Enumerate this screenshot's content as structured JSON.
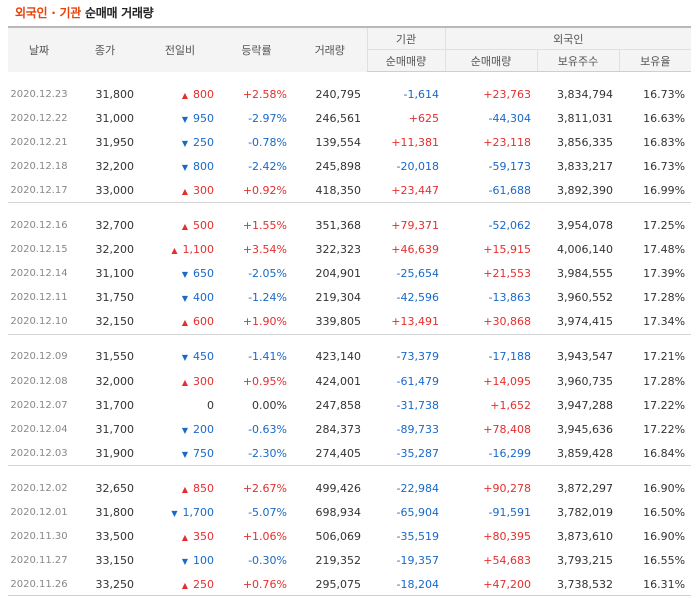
{
  "title": {
    "part1": "외국인",
    "sep": "·",
    "part2": "기관",
    "rest": "순매매 거래량"
  },
  "columns": {
    "date": "날짜",
    "close": "종가",
    "change": "전일비",
    "rate": "등락률",
    "volume": "거래량",
    "inst_group": "기관",
    "inst_net": "순매매량",
    "foreign_group": "외국인",
    "foreign_net": "순매매량",
    "foreign_hold": "보유주수",
    "foreign_ratio": "보유율"
  },
  "colors": {
    "up": "#e52e2e",
    "down": "#1969c8"
  },
  "groups": [
    [
      {
        "date": "2020.12.23",
        "close": "31,800",
        "dir": "up",
        "change": "800",
        "rate": "+2.58%",
        "volume": "240,795",
        "inst": "-1,614",
        "foreign": "+23,763",
        "hold": "3,834,794",
        "ratio": "16.73%"
      },
      {
        "date": "2020.12.22",
        "close": "31,000",
        "dir": "down",
        "change": "950",
        "rate": "-2.97%",
        "volume": "246,561",
        "inst": "+625",
        "foreign": "-44,304",
        "hold": "3,811,031",
        "ratio": "16.63%"
      },
      {
        "date": "2020.12.21",
        "close": "31,950",
        "dir": "down",
        "change": "250",
        "rate": "-0.78%",
        "volume": "139,554",
        "inst": "+11,381",
        "foreign": "+23,118",
        "hold": "3,856,335",
        "ratio": "16.83%"
      },
      {
        "date": "2020.12.18",
        "close": "32,200",
        "dir": "down",
        "change": "800",
        "rate": "-2.42%",
        "volume": "245,898",
        "inst": "-20,018",
        "foreign": "-59,173",
        "hold": "3,833,217",
        "ratio": "16.73%"
      },
      {
        "date": "2020.12.17",
        "close": "33,000",
        "dir": "up",
        "change": "300",
        "rate": "+0.92%",
        "volume": "418,350",
        "inst": "+23,447",
        "foreign": "-61,688",
        "hold": "3,892,390",
        "ratio": "16.99%"
      }
    ],
    [
      {
        "date": "2020.12.16",
        "close": "32,700",
        "dir": "up",
        "change": "500",
        "rate": "+1.55%",
        "volume": "351,368",
        "inst": "+79,371",
        "foreign": "-52,062",
        "hold": "3,954,078",
        "ratio": "17.25%"
      },
      {
        "date": "2020.12.15",
        "close": "32,200",
        "dir": "up",
        "change": "1,100",
        "rate": "+3.54%",
        "volume": "322,323",
        "inst": "+46,639",
        "foreign": "+15,915",
        "hold": "4,006,140",
        "ratio": "17.48%"
      },
      {
        "date": "2020.12.14",
        "close": "31,100",
        "dir": "down",
        "change": "650",
        "rate": "-2.05%",
        "volume": "204,901",
        "inst": "-25,654",
        "foreign": "+21,553",
        "hold": "3,984,555",
        "ratio": "17.39%"
      },
      {
        "date": "2020.12.11",
        "close": "31,750",
        "dir": "down",
        "change": "400",
        "rate": "-1.24%",
        "volume": "219,304",
        "inst": "-42,596",
        "foreign": "-13,863",
        "hold": "3,960,552",
        "ratio": "17.28%"
      },
      {
        "date": "2020.12.10",
        "close": "32,150",
        "dir": "up",
        "change": "600",
        "rate": "+1.90%",
        "volume": "339,805",
        "inst": "+13,491",
        "foreign": "+30,868",
        "hold": "3,974,415",
        "ratio": "17.34%"
      }
    ],
    [
      {
        "date": "2020.12.09",
        "close": "31,550",
        "dir": "down",
        "change": "450",
        "rate": "-1.41%",
        "volume": "423,140",
        "inst": "-73,379",
        "foreign": "-17,188",
        "hold": "3,943,547",
        "ratio": "17.21%"
      },
      {
        "date": "2020.12.08",
        "close": "32,000",
        "dir": "up",
        "change": "300",
        "rate": "+0.95%",
        "volume": "424,001",
        "inst": "-61,479",
        "foreign": "+14,095",
        "hold": "3,960,735",
        "ratio": "17.28%"
      },
      {
        "date": "2020.12.07",
        "close": "31,700",
        "dir": "none",
        "change": "0",
        "rate": "0.00%",
        "volume": "247,858",
        "inst": "-31,738",
        "foreign": "+1,652",
        "hold": "3,947,288",
        "ratio": "17.22%"
      },
      {
        "date": "2020.12.04",
        "close": "31,700",
        "dir": "down",
        "change": "200",
        "rate": "-0.63%",
        "volume": "284,373",
        "inst": "-89,733",
        "foreign": "+78,408",
        "hold": "3,945,636",
        "ratio": "17.22%"
      },
      {
        "date": "2020.12.03",
        "close": "31,900",
        "dir": "down",
        "change": "750",
        "rate": "-2.30%",
        "volume": "274,405",
        "inst": "-35,287",
        "foreign": "-16,299",
        "hold": "3,859,428",
        "ratio": "16.84%"
      }
    ],
    [
      {
        "date": "2020.12.02",
        "close": "32,650",
        "dir": "up",
        "change": "850",
        "rate": "+2.67%",
        "volume": "499,426",
        "inst": "-22,984",
        "foreign": "+90,278",
        "hold": "3,872,297",
        "ratio": "16.90%"
      },
      {
        "date": "2020.12.01",
        "close": "31,800",
        "dir": "down",
        "change": "1,700",
        "rate": "-5.07%",
        "volume": "698,934",
        "inst": "-65,904",
        "foreign": "-91,591",
        "hold": "3,782,019",
        "ratio": "16.50%"
      },
      {
        "date": "2020.11.30",
        "close": "33,500",
        "dir": "up",
        "change": "350",
        "rate": "+1.06%",
        "volume": "506,069",
        "inst": "-35,519",
        "foreign": "+80,395",
        "hold": "3,873,610",
        "ratio": "16.90%"
      },
      {
        "date": "2020.11.27",
        "close": "33,150",
        "dir": "down",
        "change": "100",
        "rate": "-0.30%",
        "volume": "219,352",
        "inst": "-19,357",
        "foreign": "+54,683",
        "hold": "3,793,215",
        "ratio": "16.55%"
      },
      {
        "date": "2020.11.26",
        "close": "33,250",
        "dir": "up",
        "change": "250",
        "rate": "+0.76%",
        "volume": "295,075",
        "inst": "-18,204",
        "foreign": "+47,200",
        "hold": "3,738,532",
        "ratio": "16.31%"
      }
    ]
  ]
}
